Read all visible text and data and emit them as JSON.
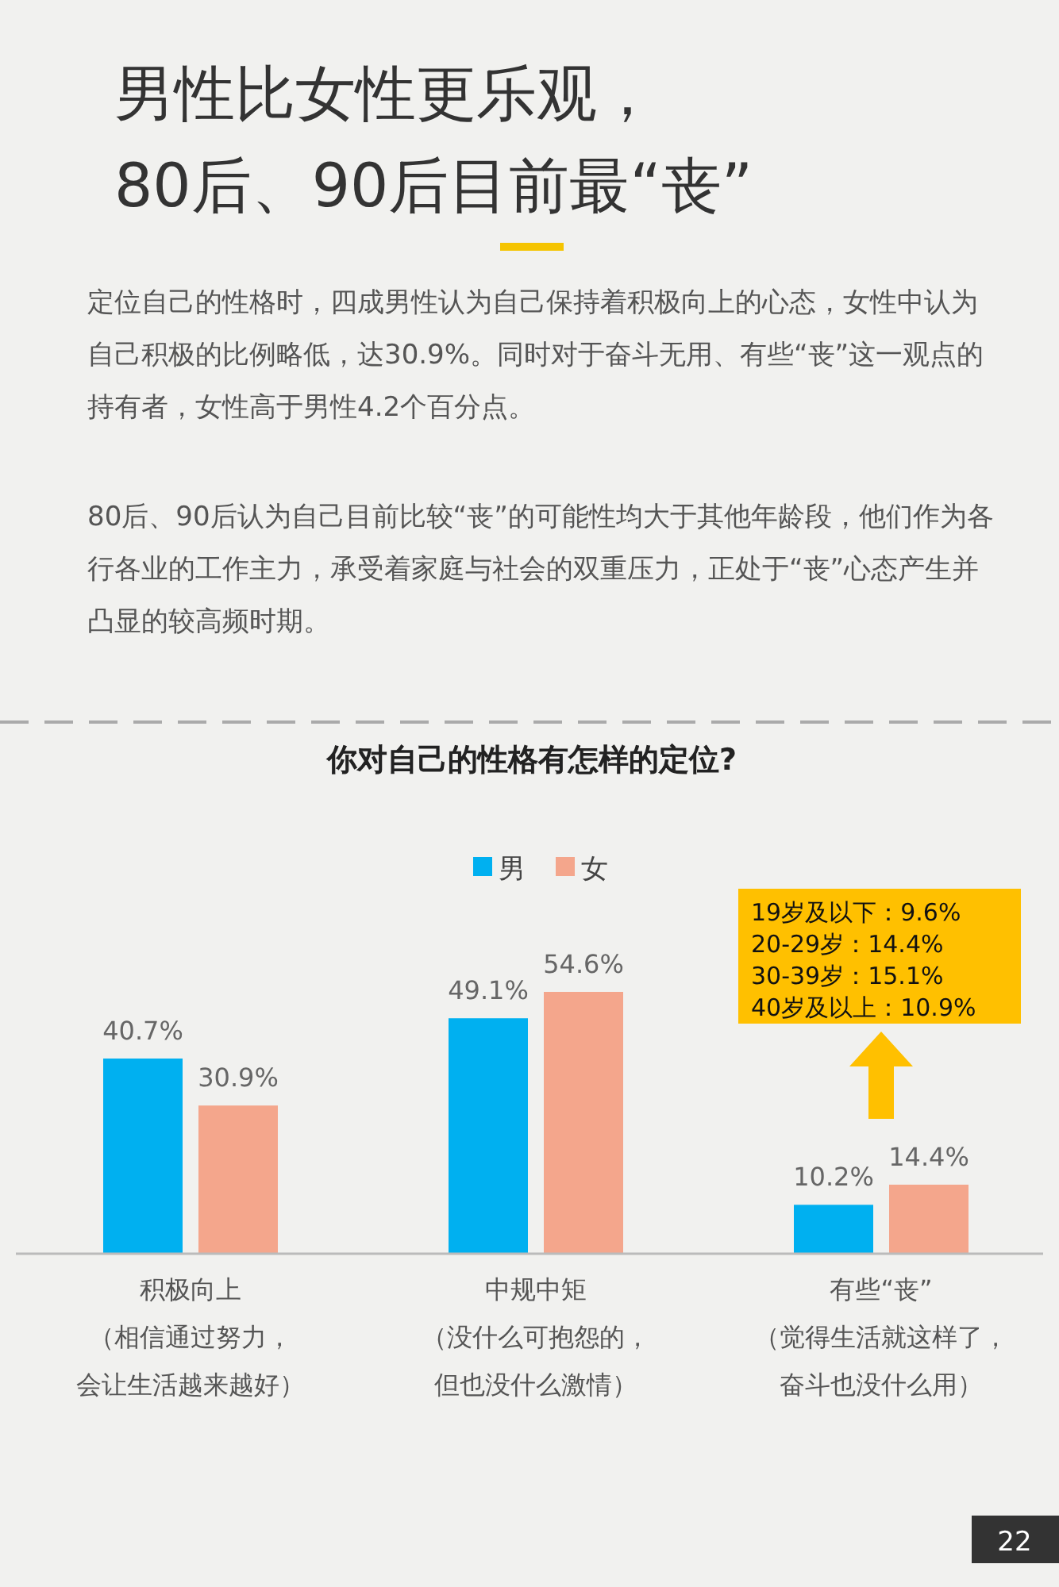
{
  "chart_data": {
    "type": "bar",
    "title": "男性比女性更乐观，\n80后、90后目前最“丧”",
    "subtitle": "你对自己的性格有怎样的定位?",
    "categories": [
      "积极向上（相信通过努力，会让生活越来越好）",
      "中规中矩（没什么可抱怨的，但也没什么激情）",
      "有些“丧”（觉得生活就这样了，奋斗也没什么用）"
    ],
    "series": [
      {
        "name": "男",
        "color": "#00b0f0",
        "values": [
          40.7,
          49.1,
          10.2
        ],
        "value_labels": [
          "40.7%",
          "49.1%",
          "10.2%"
        ]
      },
      {
        "name": "女",
        "color": "#f4a68c",
        "values": [
          30.9,
          54.6,
          14.4
        ],
        "value_labels": [
          "30.9%",
          "54.6%",
          "14.4%"
        ]
      }
    ],
    "legend": "top",
    "grid": false,
    "annotations": [
      "定位自己的性格时，四成男性认为自己保持着积极向上的心态，女性中认为自己积极的比例略低，达30.9%。同时对于奋斗无用、有些“丧”这一观点的持有者，女性高于男性4.2个百分点。",
      "80后、90后认为自己目前比较“丧”的可能性均大于其他年龄段，他们作为各行各业的工作主力，承受着家庭与社会的双重压力，正处于“丧”心态产生并凸显的较高频时期。",
      "19岁及以下：9.6%",
      "20-29岁：14.4%",
      "30-39岁：15.1%",
      "40岁及以上：10.9%",
      "22"
    ]
  }
}
